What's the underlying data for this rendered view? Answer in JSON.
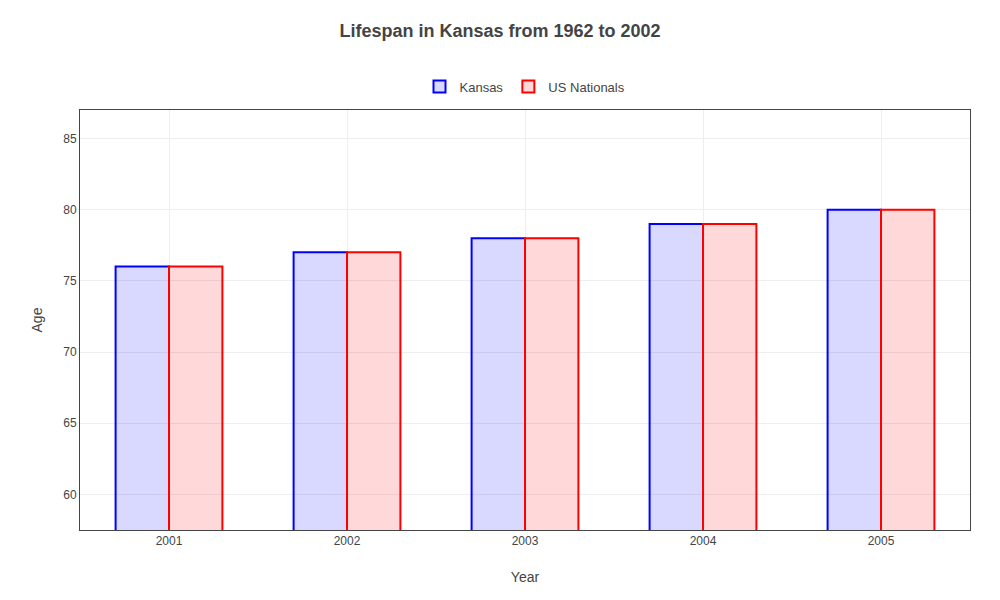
{
  "chart_data": {
    "type": "bar",
    "title": "Lifespan in Kansas from 1962 to 2002",
    "xlabel": "Year",
    "ylabel": "Age",
    "categories": [
      "2001",
      "2002",
      "2003",
      "2004",
      "2005"
    ],
    "series": [
      {
        "name": "Kansas",
        "color": "#0000ff",
        "values": [
          76,
          77,
          78,
          79,
          80
        ]
      },
      {
        "name": "US Nationals",
        "color": "#ff0000",
        "values": [
          76,
          77,
          78,
          79,
          80
        ]
      }
    ],
    "ylim": [
      57.5,
      87
    ],
    "yticks": [
      60,
      65,
      70,
      75,
      80,
      85
    ],
    "grid": true,
    "legend": "top"
  }
}
